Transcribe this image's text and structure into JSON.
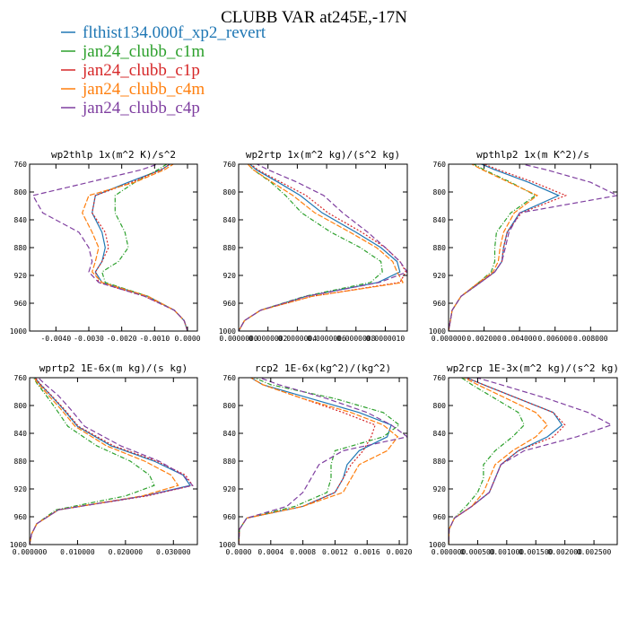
{
  "figure": {
    "title": "CLUBB VAR at245E,-17N",
    "legend": [
      {
        "name": "flthist134.000f_xp2_revert",
        "color": "#1f77b4",
        "dash": "none"
      },
      {
        "name": "jan24_clubb_c1m",
        "color": "#2ca02c",
        "dash": "5,2,1,2"
      },
      {
        "name": "jan24_clubb_c1p",
        "color": "#d62728",
        "dash": "2,2"
      },
      {
        "name": "jan24_clubb_c4m",
        "color": "#ff7f0e",
        "dash": "6,2"
      },
      {
        "name": "jan24_clubb_c4p",
        "color": "#7f3fa0",
        "dash": "6,3"
      }
    ]
  },
  "chart_data": [
    {
      "type": "line",
      "title": "wp2thlp  1x(m^2 K)/s^2",
      "xlim": [
        -0.0048,
        0.0003
      ],
      "ylim": [
        760,
        1000
      ],
      "y_reversed": true,
      "xticks": [
        -0.004,
        -0.003,
        -0.002,
        -0.001,
        0.0
      ],
      "xtick_labels": [
        "-0.0040",
        "-0.0030",
        "-0.0020",
        "-0.0010",
        "0.0000"
      ],
      "yticks": [
        760,
        800,
        840,
        880,
        920,
        960,
        1000
      ],
      "y": [
        753,
        768,
        786,
        805,
        830,
        858,
        880,
        900,
        915,
        930,
        950,
        970,
        985,
        1000
      ],
      "series": [
        {
          "name": "flthist134.000f_xp2_revert",
          "x": [
            -0.0003,
            -0.0008,
            -0.0018,
            -0.0028,
            -0.0029,
            -0.0026,
            -0.0025,
            -0.0026,
            -0.0028,
            -0.0026,
            -0.0012,
            -0.0004,
            -0.0001,
            0.0
          ]
        },
        {
          "name": "jan24_clubb_c1m",
          "x": [
            -0.0004,
            -0.0009,
            -0.0016,
            -0.0022,
            -0.0022,
            -0.0019,
            -0.0018,
            -0.0021,
            -0.0026,
            -0.0025,
            -0.0012,
            -0.0004,
            -0.0001,
            0.0
          ]
        },
        {
          "name": "jan24_clubb_c1p",
          "x": [
            -0.0003,
            -0.0008,
            -0.0017,
            -0.0028,
            -0.0029,
            -0.0025,
            -0.0024,
            -0.0026,
            -0.0028,
            -0.0027,
            -0.0013,
            -0.0004,
            -0.0001,
            0.0
          ]
        },
        {
          "name": "jan24_clubb_c4m",
          "x": [
            -0.0002,
            -0.0007,
            -0.0016,
            -0.003,
            -0.0032,
            -0.0029,
            -0.0027,
            -0.0028,
            -0.0029,
            -0.0026,
            -0.0012,
            -0.0004,
            -0.0001,
            0.0
          ]
        },
        {
          "name": "jan24_clubb_c4p",
          "x": [
            -0.0005,
            -0.0014,
            -0.003,
            -0.0047,
            -0.0044,
            -0.0033,
            -0.003,
            -0.0029,
            -0.003,
            -0.0027,
            -0.0013,
            -0.0004,
            -0.0001,
            0.0
          ]
        }
      ]
    },
    {
      "type": "line",
      "title": "wp2rtp  1x(m^2 kg)/(s^2 kg)",
      "xlim": [
        0.0,
        1.15e-06
      ],
      "ylim": [
        760,
        1000
      ],
      "y_reversed": true,
      "xticks": [
        0.0,
        2e-07,
        4e-07,
        6e-07,
        8e-07,
        1e-06
      ],
      "xtick_labels": [
        "0.0000000",
        "0.0000002",
        "0.0000004",
        "0.0000006",
        "0.0000008",
        "0.0000010"
      ],
      "yticks": [
        760,
        800,
        840,
        880,
        920,
        960,
        1000
      ],
      "y": [
        753,
        768,
        786,
        805,
        830,
        858,
        880,
        900,
        915,
        930,
        950,
        970,
        985,
        1000
      ],
      "series": [
        {
          "name": "flthist134.000f_xp2_revert",
          "x": [
            4e-08,
            1.2e-07,
            2.7e-07,
            4.2e-07,
            5.7e-07,
            8e-07,
            9.7e-07,
            1.08e-06,
            1.1e-06,
            9.5e-07,
            4.6e-07,
            1.5e-07,
            4e-08,
            0.0
          ]
        },
        {
          "name": "jan24_clubb_c1m",
          "x": [
            3e-08,
            1e-07,
            2.2e-07,
            3.2e-07,
            4.3e-07,
            6.3e-07,
            8.3e-07,
            9.7e-07,
            9.8e-07,
            9e-07,
            4.5e-07,
            1.5e-07,
            4e-08,
            0.0
          ]
        },
        {
          "name": "jan24_clubb_c1p",
          "x": [
            4e-08,
            1.3e-07,
            2.9e-07,
            4.6e-07,
            6.1e-07,
            8.4e-07,
            1e-06,
            1.1e-06,
            1.14e-06,
            1.1e-06,
            5e-07,
            1.5e-07,
            4e-08,
            0.0
          ]
        },
        {
          "name": "jan24_clubb_c4m",
          "x": [
            3e-08,
            1e-07,
            2.3e-07,
            3.7e-07,
            5.2e-07,
            7.6e-07,
            9.4e-07,
            1.05e-06,
            1.08e-06,
            1.12e-06,
            5e-07,
            1.5e-07,
            4e-08,
            0.0
          ]
        },
        {
          "name": "jan24_clubb_c4p",
          "x": [
            6e-08,
            2e-07,
            4e-07,
            5.8e-07,
            7.1e-07,
            8.8e-07,
            1e-06,
            1.1e-06,
            1.15e-06,
            9.6e-07,
            4.6e-07,
            1.5e-07,
            4e-08,
            0.0
          ]
        }
      ]
    },
    {
      "type": "line",
      "title": "wpthlp2  1x(m K^2)/s",
      "xlim": [
        0.0,
        0.0095
      ],
      "ylim": [
        760,
        1000
      ],
      "y_reversed": true,
      "xticks": [
        0.0,
        0.002,
        0.004,
        0.006,
        0.008
      ],
      "xtick_labels": [
        "0.000000",
        "0.002000",
        "0.004000",
        "0.006000",
        "0.008000"
      ],
      "yticks": [
        760,
        800,
        840,
        880,
        920,
        960,
        1000
      ],
      "y": [
        753,
        768,
        786,
        805,
        830,
        858,
        880,
        900,
        915,
        930,
        950,
        970,
        985,
        1000
      ],
      "series": [
        {
          "name": "flthist134.000f_xp2_revert",
          "x": [
            0.0012,
            0.0026,
            0.0045,
            0.0062,
            0.004,
            0.0033,
            0.0031,
            0.003,
            0.0026,
            0.0018,
            0.0007,
            0.0002,
            0.0001,
            0.0
          ]
        },
        {
          "name": "jan24_clubb_c1m",
          "x": [
            0.0009,
            0.002,
            0.0035,
            0.0049,
            0.0035,
            0.0027,
            0.0026,
            0.0026,
            0.0024,
            0.0017,
            0.0007,
            0.0002,
            0.0001,
            0.0
          ]
        },
        {
          "name": "jan24_clubb_c1p",
          "x": [
            0.0013,
            0.0028,
            0.0048,
            0.0066,
            0.0041,
            0.0033,
            0.0031,
            0.003,
            0.0026,
            0.0018,
            0.0007,
            0.0002,
            0.0001,
            0.0
          ]
        },
        {
          "name": "jan24_clubb_c4m",
          "x": [
            0.0008,
            0.0019,
            0.0034,
            0.005,
            0.0037,
            0.0031,
            0.0029,
            0.0028,
            0.0025,
            0.0017,
            0.0007,
            0.0002,
            0.0001,
            0.0
          ]
        },
        {
          "name": "jan24_clubb_c4p",
          "x": [
            0.003,
            0.0055,
            0.008,
            0.0095,
            0.004,
            0.0034,
            0.0032,
            0.003,
            0.0026,
            0.0018,
            0.0007,
            0.0002,
            0.0001,
            0.0
          ]
        }
      ]
    },
    {
      "type": "line",
      "title": "wprtp2  1E-6x(m kg)/(s kg)",
      "xlim": [
        0.0,
        0.035
      ],
      "ylim": [
        760,
        1000
      ],
      "y_reversed": true,
      "xticks": [
        0.0,
        0.01,
        0.02,
        0.03
      ],
      "xtick_labels": [
        "0.000000",
        "0.010000",
        "0.020000",
        "0.030000"
      ],
      "yticks": [
        760,
        800,
        840,
        880,
        920,
        960,
        1000
      ],
      "y": [
        753,
        768,
        786,
        805,
        830,
        858,
        880,
        900,
        915,
        930,
        950,
        970,
        985,
        1000
      ],
      "series": [
        {
          "name": "flthist134.000f_xp2_revert",
          "x": [
            0.0004,
            0.002,
            0.0045,
            0.007,
            0.01,
            0.017,
            0.026,
            0.032,
            0.0335,
            0.024,
            0.006,
            0.0015,
            0.0004,
            0.0
          ]
        },
        {
          "name": "jan24_clubb_c1m",
          "x": [
            0.0003,
            0.0015,
            0.0035,
            0.0055,
            0.008,
            0.014,
            0.021,
            0.025,
            0.026,
            0.02,
            0.0055,
            0.0015,
            0.0004,
            0.0
          ]
        },
        {
          "name": "jan24_clubb_c1p",
          "x": [
            0.0004,
            0.0021,
            0.0046,
            0.0072,
            0.0102,
            0.0175,
            0.0265,
            0.0325,
            0.034,
            0.0245,
            0.006,
            0.0015,
            0.0004,
            0.0
          ]
        },
        {
          "name": "jan24_clubb_c4m",
          "x": [
            0.0003,
            0.0017,
            0.004,
            0.0065,
            0.0095,
            0.016,
            0.024,
            0.0295,
            0.031,
            0.0235,
            0.006,
            0.0015,
            0.0004,
            0.0
          ]
        },
        {
          "name": "jan24_clubb_c4p",
          "x": [
            0.0008,
            0.003,
            0.006,
            0.0085,
            0.0115,
            0.019,
            0.027,
            0.032,
            0.034,
            0.024,
            0.006,
            0.0015,
            0.0004,
            0.0
          ]
        }
      ]
    },
    {
      "type": "line",
      "title": "rcp2  1E-6x(kg^2)/(kg^2)",
      "xlim": [
        0.0,
        0.0021
      ],
      "ylim": [
        760,
        1000
      ],
      "y_reversed": true,
      "xticks": [
        0.0,
        0.0004,
        0.0008,
        0.0012,
        0.0016,
        0.002
      ],
      "xtick_labels": [
        "0.0000",
        "0.0004",
        "0.0008",
        "0.0012",
        "0.0016",
        "0.0020"
      ],
      "yticks": [
        760,
        800,
        840,
        880,
        920,
        960,
        1000
      ],
      "y": [
        753,
        770,
        790,
        810,
        828,
        845,
        865,
        885,
        905,
        925,
        945,
        962,
        978,
        1000
      ],
      "series": [
        {
          "name": "flthist134.000f_xp2_revert",
          "x": [
            5e-05,
            0.0003,
            0.0009,
            0.0015,
            0.0019,
            0.00185,
            0.0015,
            0.00135,
            0.0013,
            0.0012,
            0.0008,
            0.0001,
            1e-05,
            0.0
          ]
        },
        {
          "name": "jan24_clubb_c1m",
          "x": [
            5e-05,
            0.0004,
            0.0012,
            0.0018,
            0.002,
            0.0018,
            0.0012,
            0.00115,
            0.00115,
            0.0011,
            0.0007,
            0.0001,
            1e-05,
            0.0
          ]
        },
        {
          "name": "jan24_clubb_c1p",
          "x": [
            5e-05,
            0.0003,
            0.0008,
            0.0013,
            0.0017,
            0.00165,
            0.00155,
            0.0014,
            0.0013,
            0.0012,
            0.0008,
            0.0001,
            1e-05,
            0.0
          ]
        },
        {
          "name": "jan24_clubb_c4m",
          "x": [
            5e-05,
            0.0003,
            0.0008,
            0.0014,
            0.0018,
            0.00198,
            0.00185,
            0.0015,
            0.0014,
            0.0013,
            0.0008,
            0.0001,
            1e-05,
            0.0
          ]
        },
        {
          "name": "jan24_clubb_c4p",
          "x": [
            0.0001,
            0.0005,
            0.0011,
            0.0016,
            0.0019,
            0.0021,
            0.0013,
            0.001,
            0.0009,
            0.0008,
            0.0006,
            0.0001,
            1e-05,
            0.0
          ]
        }
      ]
    },
    {
      "type": "line",
      "title": "wp2rcp  1E-3x(m^2 kg)/(s^2 kg)",
      "xlim": [
        0.0,
        0.0029
      ],
      "ylim": [
        760,
        1000
      ],
      "y_reversed": true,
      "xticks": [
        0.0,
        0.0005,
        0.001,
        0.0015,
        0.002,
        0.0025
      ],
      "xtick_labels": [
        "0.000000",
        "0.000500",
        "0.001000",
        "0.001500",
        "0.002000",
        "0.002500"
      ],
      "yticks": [
        760,
        800,
        840,
        880,
        920,
        960,
        1000
      ],
      "y": [
        753,
        770,
        790,
        810,
        828,
        845,
        865,
        885,
        905,
        925,
        945,
        962,
        978,
        1000
      ],
      "series": [
        {
          "name": "flthist134.000f_xp2_revert",
          "x": [
            0.0001,
            0.0006,
            0.0012,
            0.0018,
            0.00195,
            0.0017,
            0.0012,
            0.0009,
            0.0008,
            0.0007,
            0.0004,
            0.0001,
            1e-05,
            0.0
          ]
        },
        {
          "name": "jan24_clubb_c1m",
          "x": [
            0.0001,
            0.0004,
            0.0008,
            0.0012,
            0.0013,
            0.0011,
            0.0008,
            0.0006,
            0.0006,
            0.0005,
            0.0003,
            0.0001,
            1e-05,
            0.0
          ]
        },
        {
          "name": "jan24_clubb_c1p",
          "x": [
            0.0001,
            0.0006,
            0.0012,
            0.0018,
            0.002,
            0.0018,
            0.0012,
            0.0009,
            0.0008,
            0.0007,
            0.0004,
            0.0001,
            1e-05,
            0.0
          ]
        },
        {
          "name": "jan24_clubb_c4m",
          "x": [
            0.0001,
            0.0005,
            0.001,
            0.0015,
            0.0017,
            0.0015,
            0.0011,
            0.0008,
            0.0007,
            0.0006,
            0.0004,
            0.0001,
            1e-05,
            0.0
          ]
        },
        {
          "name": "jan24_clubb_c4p",
          "x": [
            0.0002,
            0.0009,
            0.0017,
            0.0024,
            0.0028,
            0.0022,
            0.0013,
            0.0009,
            0.0008,
            0.0007,
            0.0004,
            0.0001,
            1e-05,
            0.0
          ]
        }
      ]
    }
  ]
}
